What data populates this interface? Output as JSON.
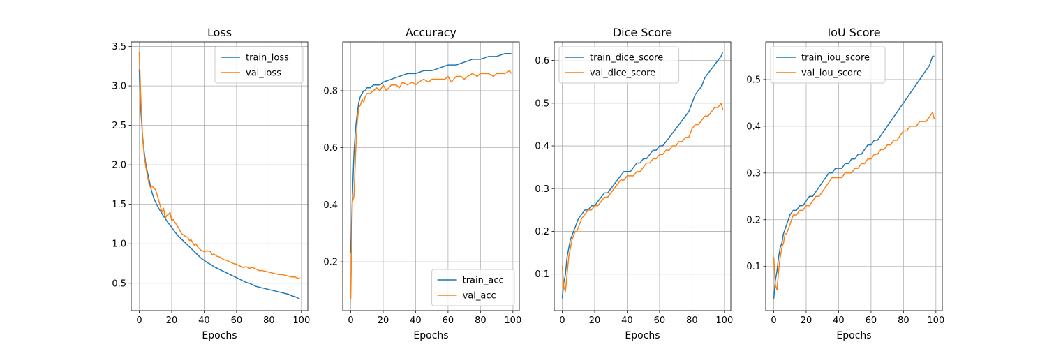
{
  "figure": {
    "background": "#ffffff"
  },
  "colors": {
    "train": "#1f77b4",
    "val": "#ff7f0e",
    "grid": "#b0b0b0"
  },
  "chart_data": [
    {
      "type": "line",
      "title": "Loss",
      "xlabel": "Epochs",
      "ylabel": "",
      "xlim": [
        -4.95,
        103.95
      ],
      "ylim": [
        0.153,
        3.558
      ],
      "xticks": [
        0,
        20,
        40,
        60,
        80,
        100
      ],
      "yticks": [
        0.5,
        1.0,
        1.5,
        2.0,
        2.5,
        3.0,
        3.5
      ],
      "ytick_labels": [
        "0.5",
        "1.0",
        "1.5",
        "2.0",
        "2.5",
        "3.0",
        "3.5"
      ],
      "grid": true,
      "legend": "top-right",
      "series": [
        {
          "name": "train_loss",
          "color": "#1f77b4",
          "x": [
            0,
            1,
            2,
            3,
            4,
            5,
            6,
            7,
            8,
            9,
            10,
            12,
            14,
            16,
            18,
            20,
            22,
            24,
            26,
            28,
            30,
            32,
            34,
            36,
            38,
            40,
            42,
            44,
            46,
            48,
            50,
            52,
            54,
            56,
            58,
            60,
            62,
            64,
            66,
            68,
            70,
            72,
            74,
            76,
            78,
            80,
            82,
            84,
            86,
            88,
            90,
            92,
            94,
            96,
            98,
            99
          ],
          "y": [
            3.21,
            2.68,
            2.38,
            2.17,
            2.02,
            1.91,
            1.82,
            1.72,
            1.64,
            1.58,
            1.53,
            1.45,
            1.38,
            1.32,
            1.26,
            1.21,
            1.15,
            1.1,
            1.06,
            1.02,
            0.98,
            0.94,
            0.9,
            0.86,
            0.82,
            0.79,
            0.76,
            0.74,
            0.71,
            0.69,
            0.67,
            0.65,
            0.63,
            0.61,
            0.59,
            0.57,
            0.55,
            0.53,
            0.51,
            0.5,
            0.48,
            0.46,
            0.45,
            0.44,
            0.43,
            0.42,
            0.41,
            0.4,
            0.39,
            0.38,
            0.37,
            0.36,
            0.34,
            0.33,
            0.31,
            0.3
          ]
        },
        {
          "name": "val_loss",
          "color": "#ff7f0e",
          "x": [
            0,
            1,
            2,
            3,
            4,
            5,
            6,
            7,
            8,
            9,
            10,
            12,
            14,
            15,
            16,
            17,
            18,
            19,
            20,
            21,
            22,
            24,
            26,
            28,
            30,
            31,
            32,
            34,
            35,
            36,
            38,
            40,
            42,
            44,
            45,
            46,
            48,
            50,
            52,
            54,
            56,
            58,
            60,
            62,
            64,
            66,
            68,
            70,
            72,
            74,
            76,
            78,
            80,
            82,
            84,
            86,
            88,
            90,
            92,
            94,
            96,
            98,
            99
          ],
          "y": [
            3.43,
            2.83,
            2.36,
            2.13,
            1.98,
            1.87,
            1.76,
            1.71,
            1.73,
            1.7,
            1.69,
            1.55,
            1.4,
            1.45,
            1.32,
            1.36,
            1.37,
            1.4,
            1.29,
            1.31,
            1.27,
            1.21,
            1.13,
            1.1,
            1.08,
            1.04,
            1.05,
            0.98,
            1.0,
            0.96,
            0.92,
            0.9,
            0.91,
            0.9,
            0.86,
            0.87,
            0.84,
            0.83,
            0.8,
            0.79,
            0.77,
            0.75,
            0.74,
            0.72,
            0.7,
            0.71,
            0.69,
            0.7,
            0.68,
            0.66,
            0.66,
            0.65,
            0.64,
            0.63,
            0.62,
            0.61,
            0.61,
            0.6,
            0.59,
            0.58,
            0.58,
            0.56,
            0.57
          ]
        }
      ]
    },
    {
      "type": "line",
      "title": "Accuracy",
      "xlabel": "Epochs",
      "ylabel": "",
      "xlim": [
        -4.95,
        103.95
      ],
      "ylim": [
        0.029,
        0.971
      ],
      "xticks": [
        0,
        20,
        40,
        60,
        80,
        100
      ],
      "yticks": [
        0.2,
        0.4,
        0.6,
        0.8
      ],
      "ytick_labels": [
        "0.2",
        "0.4",
        "0.6",
        "0.8"
      ],
      "grid": true,
      "legend": "bottom-right",
      "series": [
        {
          "name": "train_acc",
          "color": "#1f77b4",
          "x": [
            0,
            1,
            2,
            3,
            4,
            5,
            6,
            7,
            8,
            9,
            10,
            12,
            14,
            16,
            18,
            20,
            25,
            30,
            35,
            40,
            45,
            50,
            55,
            60,
            65,
            70,
            75,
            80,
            85,
            90,
            95,
            99
          ],
          "y": [
            0.23,
            0.43,
            0.58,
            0.67,
            0.72,
            0.76,
            0.78,
            0.79,
            0.8,
            0.8,
            0.81,
            0.81,
            0.82,
            0.82,
            0.82,
            0.83,
            0.84,
            0.85,
            0.86,
            0.86,
            0.87,
            0.87,
            0.88,
            0.89,
            0.89,
            0.9,
            0.91,
            0.91,
            0.92,
            0.92,
            0.93,
            0.93
          ]
        },
        {
          "name": "val_acc",
          "color": "#ff7f0e",
          "x": [
            0,
            1,
            2,
            3,
            4,
            5,
            6,
            7,
            8,
            9,
            10,
            12,
            14,
            16,
            18,
            20,
            22,
            25,
            28,
            30,
            32,
            35,
            38,
            40,
            42,
            45,
            48,
            50,
            52,
            55,
            58,
            60,
            62,
            65,
            68,
            70,
            72,
            75,
            78,
            80,
            82,
            85,
            88,
            90,
            92,
            95,
            98,
            99
          ],
          "y": [
            0.07,
            0.41,
            0.43,
            0.58,
            0.69,
            0.74,
            0.75,
            0.77,
            0.76,
            0.78,
            0.79,
            0.79,
            0.8,
            0.81,
            0.8,
            0.82,
            0.8,
            0.82,
            0.82,
            0.81,
            0.83,
            0.82,
            0.83,
            0.82,
            0.83,
            0.84,
            0.83,
            0.84,
            0.84,
            0.84,
            0.84,
            0.85,
            0.83,
            0.85,
            0.85,
            0.84,
            0.85,
            0.86,
            0.85,
            0.86,
            0.86,
            0.86,
            0.85,
            0.86,
            0.86,
            0.86,
            0.87,
            0.86
          ]
        }
      ]
    },
    {
      "type": "line",
      "title": "Dice Score",
      "xlabel": "Epochs",
      "ylabel": "",
      "xlim": [
        -4.95,
        103.95
      ],
      "ylim": [
        0.0145,
        0.6435
      ],
      "xticks": [
        0,
        20,
        40,
        60,
        80,
        100
      ],
      "yticks": [
        0.1,
        0.2,
        0.3,
        0.4,
        0.5,
        0.6
      ],
      "ytick_labels": [
        "0.1",
        "0.2",
        "0.3",
        "0.4",
        "0.5",
        "0.6"
      ],
      "grid": true,
      "legend": "top-left",
      "series": [
        {
          "name": "train_dice_score",
          "color": "#1f77b4",
          "x": [
            0,
            1,
            2,
            3,
            4,
            5,
            6,
            7,
            8,
            9,
            10,
            12,
            14,
            16,
            18,
            20,
            22,
            24,
            26,
            28,
            30,
            32,
            34,
            36,
            38,
            40,
            42,
            44,
            46,
            48,
            50,
            52,
            54,
            56,
            58,
            60,
            62,
            64,
            66,
            68,
            70,
            72,
            74,
            76,
            78,
            80,
            82,
            84,
            86,
            88,
            90,
            92,
            94,
            96,
            98,
            99
          ],
          "y": [
            0.043,
            0.08,
            0.1,
            0.14,
            0.16,
            0.18,
            0.19,
            0.2,
            0.21,
            0.22,
            0.23,
            0.24,
            0.25,
            0.25,
            0.26,
            0.26,
            0.27,
            0.28,
            0.29,
            0.29,
            0.3,
            0.31,
            0.32,
            0.33,
            0.34,
            0.34,
            0.34,
            0.35,
            0.36,
            0.36,
            0.37,
            0.37,
            0.38,
            0.39,
            0.39,
            0.4,
            0.4,
            0.41,
            0.42,
            0.43,
            0.44,
            0.45,
            0.46,
            0.47,
            0.48,
            0.5,
            0.52,
            0.53,
            0.54,
            0.56,
            0.57,
            0.58,
            0.59,
            0.6,
            0.61,
            0.62
          ]
        },
        {
          "name": "val_dice_score",
          "color": "#ff7f0e",
          "x": [
            0,
            1,
            2,
            3,
            4,
            5,
            6,
            7,
            8,
            9,
            10,
            12,
            14,
            16,
            18,
            20,
            22,
            24,
            26,
            28,
            30,
            32,
            34,
            36,
            38,
            40,
            42,
            44,
            46,
            48,
            50,
            52,
            54,
            56,
            58,
            60,
            62,
            64,
            66,
            68,
            70,
            72,
            74,
            76,
            78,
            80,
            82,
            84,
            86,
            88,
            90,
            92,
            94,
            96,
            98,
            99
          ],
          "y": [
            0.12,
            0.07,
            0.06,
            0.1,
            0.14,
            0.16,
            0.18,
            0.19,
            0.2,
            0.2,
            0.21,
            0.23,
            0.24,
            0.25,
            0.25,
            0.26,
            0.26,
            0.27,
            0.28,
            0.28,
            0.29,
            0.3,
            0.31,
            0.32,
            0.32,
            0.33,
            0.33,
            0.33,
            0.34,
            0.34,
            0.35,
            0.36,
            0.36,
            0.37,
            0.37,
            0.38,
            0.38,
            0.39,
            0.39,
            0.4,
            0.4,
            0.41,
            0.41,
            0.42,
            0.42,
            0.44,
            0.45,
            0.45,
            0.46,
            0.47,
            0.47,
            0.48,
            0.49,
            0.49,
            0.5,
            0.485
          ]
        }
      ]
    },
    {
      "type": "line",
      "title": "IoU Score",
      "xlabel": "Epochs",
      "ylabel": "",
      "xlim": [
        -4.95,
        103.95
      ],
      "ylim": [
        0.0055,
        0.5805
      ],
      "xticks": [
        0,
        20,
        40,
        60,
        80,
        100
      ],
      "yticks": [
        0.1,
        0.2,
        0.3,
        0.4,
        0.5
      ],
      "ytick_labels": [
        "0.1",
        "0.2",
        "0.3",
        "0.4",
        "0.5"
      ],
      "grid": true,
      "legend": "top-left",
      "series": [
        {
          "name": "train_iou_score",
          "color": "#1f77b4",
          "x": [
            0,
            1,
            2,
            3,
            4,
            5,
            6,
            7,
            8,
            9,
            10,
            12,
            14,
            16,
            18,
            20,
            22,
            24,
            26,
            28,
            30,
            32,
            34,
            36,
            38,
            40,
            42,
            44,
            46,
            48,
            50,
            52,
            54,
            56,
            58,
            60,
            62,
            64,
            66,
            68,
            70,
            72,
            74,
            76,
            78,
            80,
            82,
            84,
            86,
            88,
            90,
            92,
            94,
            96,
            98,
            99
          ],
          "y": [
            0.03,
            0.07,
            0.09,
            0.12,
            0.14,
            0.15,
            0.17,
            0.18,
            0.19,
            0.2,
            0.21,
            0.22,
            0.22,
            0.23,
            0.23,
            0.24,
            0.25,
            0.25,
            0.26,
            0.27,
            0.28,
            0.29,
            0.3,
            0.3,
            0.31,
            0.31,
            0.31,
            0.32,
            0.32,
            0.33,
            0.33,
            0.34,
            0.34,
            0.35,
            0.36,
            0.36,
            0.37,
            0.37,
            0.38,
            0.39,
            0.4,
            0.41,
            0.42,
            0.43,
            0.44,
            0.45,
            0.46,
            0.47,
            0.48,
            0.49,
            0.5,
            0.51,
            0.52,
            0.53,
            0.55,
            0.55
          ]
        },
        {
          "name": "val_iou_score",
          "color": "#ff7f0e",
          "x": [
            0,
            1,
            2,
            3,
            4,
            5,
            6,
            7,
            8,
            9,
            10,
            12,
            14,
            16,
            18,
            20,
            22,
            24,
            26,
            28,
            30,
            32,
            34,
            36,
            38,
            40,
            42,
            44,
            46,
            48,
            50,
            52,
            54,
            56,
            58,
            60,
            62,
            64,
            66,
            68,
            70,
            72,
            74,
            76,
            78,
            80,
            82,
            84,
            86,
            88,
            90,
            92,
            94,
            96,
            98,
            99
          ],
          "y": [
            0.12,
            0.06,
            0.05,
            0.09,
            0.12,
            0.14,
            0.15,
            0.17,
            0.17,
            0.18,
            0.19,
            0.21,
            0.21,
            0.22,
            0.22,
            0.23,
            0.23,
            0.24,
            0.25,
            0.25,
            0.26,
            0.27,
            0.28,
            0.29,
            0.29,
            0.29,
            0.29,
            0.3,
            0.3,
            0.3,
            0.31,
            0.31,
            0.32,
            0.32,
            0.33,
            0.33,
            0.34,
            0.34,
            0.35,
            0.35,
            0.36,
            0.36,
            0.37,
            0.37,
            0.38,
            0.39,
            0.39,
            0.4,
            0.4,
            0.4,
            0.41,
            0.41,
            0.41,
            0.42,
            0.43,
            0.415
          ]
        }
      ]
    }
  ]
}
